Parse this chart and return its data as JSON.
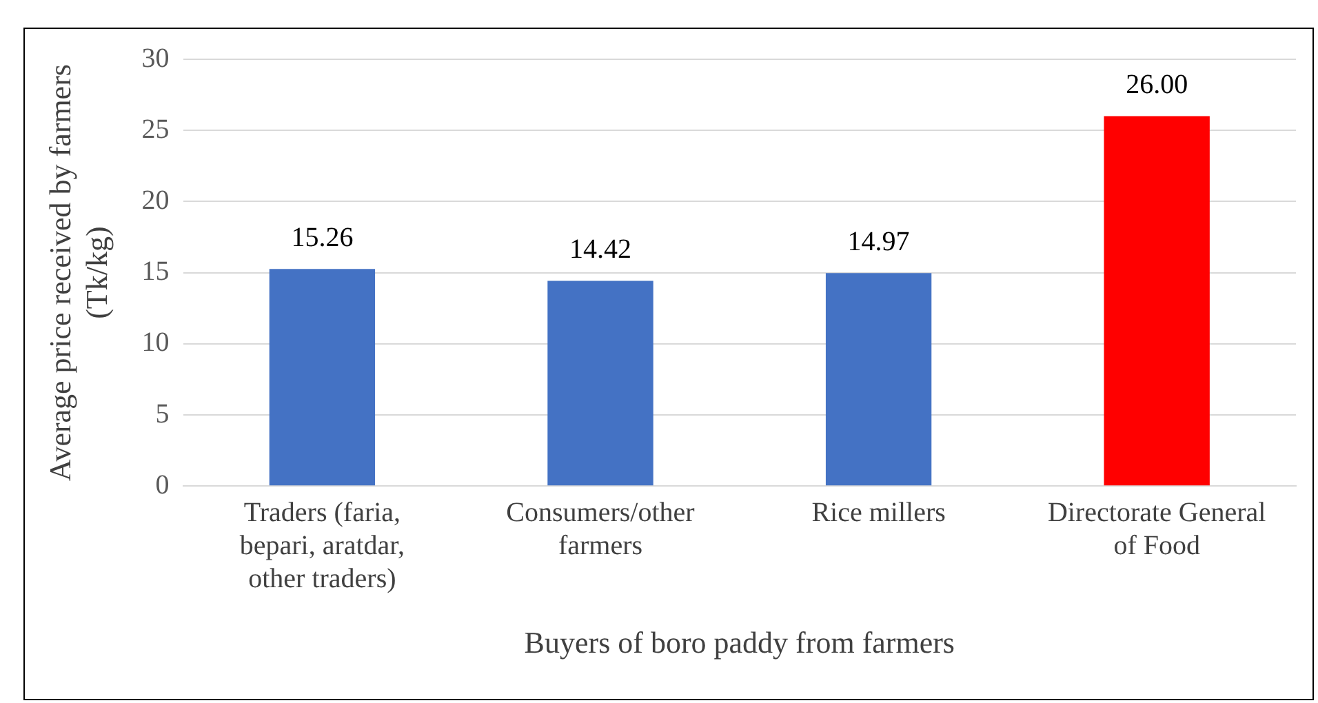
{
  "chart_data": {
    "type": "bar",
    "xlabel": "Buyers of boro paddy from farmers",
    "ylabel": "Average price received by farmers (Tk/kg)",
    "categories": [
      "Traders (faria, bepari, aratdar, other traders)",
      "Consumers/other farmers",
      "Rice millers",
      "Directorate General of Food"
    ],
    "values": [
      15.26,
      14.42,
      14.97,
      26.0
    ],
    "colors": [
      "#4472c4",
      "#4472c4",
      "#4472c4",
      "#ff0000"
    ],
    "value_labels": [
      "15.26",
      "14.42",
      "14.97",
      "26.00"
    ],
    "ylim": [
      0,
      30
    ],
    "yticks": [
      0,
      5,
      10,
      15,
      20,
      25,
      30
    ],
    "grid": "y",
    "legend": false
  }
}
